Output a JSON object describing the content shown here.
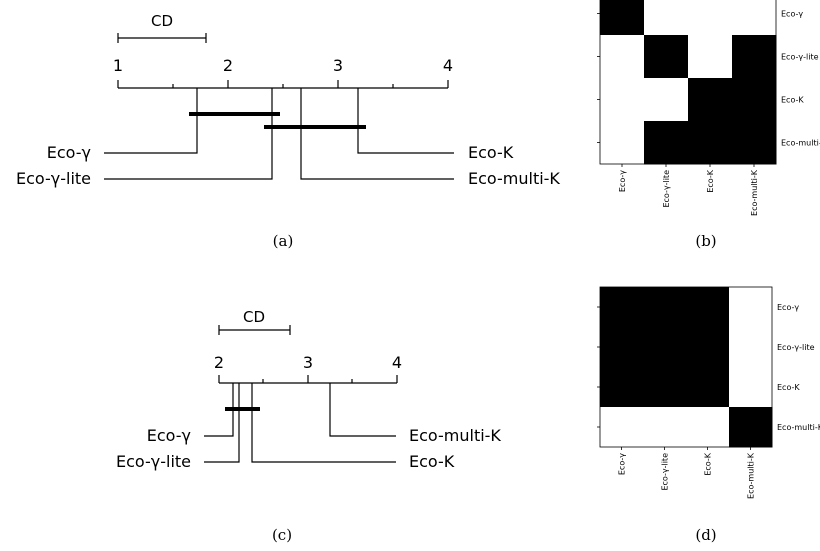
{
  "captions": {
    "a": "(a)",
    "b": "(b)",
    "c": "(c)",
    "d": "(d)"
  },
  "matrix_labels": [
    "Eco-γ",
    "Eco-γ-lite",
    "Eco-K",
    "Eco-multi-K"
  ],
  "cd_a": {
    "cd_label": "CD",
    "ticks": [
      "1",
      "2",
      "3",
      "4"
    ],
    "axis_min": 1,
    "axis_max": 4,
    "cd_value": 0.8,
    "methods": [
      {
        "name": "Eco-γ",
        "rank": 1.72,
        "side": "left"
      },
      {
        "name": "Eco-γ-lite",
        "rank": 2.42,
        "side": "left"
      },
      {
        "name": "Eco-K",
        "rank": 3.2,
        "side": "right"
      },
      {
        "name": "Eco-multi-K",
        "rank": 2.67,
        "side": "right"
      }
    ],
    "cliques": [
      [
        1.65,
        2.5
      ],
      [
        2.35,
        3.28
      ]
    ]
  },
  "cd_c": {
    "cd_label": "CD",
    "ticks": [
      "2",
      "3",
      "4"
    ],
    "axis_min": 2,
    "axis_max": 4,
    "cd_value": 0.8,
    "methods": [
      {
        "name": "Eco-γ",
        "rank": 2.15,
        "side": "left"
      },
      {
        "name": "Eco-γ-lite",
        "rank": 2.22,
        "side": "left"
      },
      {
        "name": "Eco-multi-K",
        "rank": 3.25,
        "side": "right"
      },
      {
        "name": "Eco-K",
        "rank": 2.37,
        "side": "right"
      }
    ],
    "cliques": [
      [
        2.08,
        2.47
      ]
    ]
  },
  "matrix_b": {
    "cells": [
      [
        1,
        0,
        0,
        0
      ],
      [
        0,
        1,
        0,
        1
      ],
      [
        0,
        0,
        1,
        1
      ],
      [
        0,
        1,
        1,
        1
      ]
    ]
  },
  "matrix_d": {
    "cells": [
      [
        1,
        1,
        1,
        0
      ],
      [
        1,
        1,
        1,
        0
      ],
      [
        1,
        1,
        1,
        0
      ],
      [
        0,
        0,
        0,
        1
      ]
    ]
  }
}
